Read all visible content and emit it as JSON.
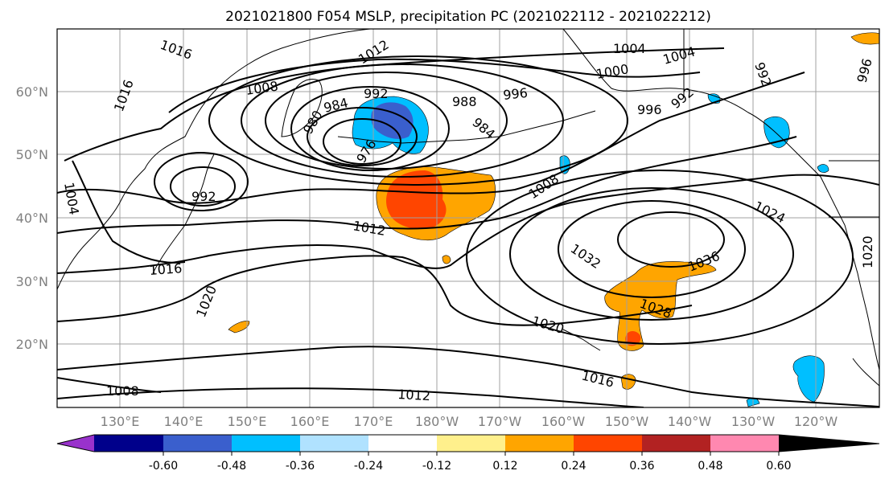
{
  "title": "2021021800 F054 MSLP, precipitation PC (2021022112 - 2021022212)",
  "map": {
    "lat_ticks": [
      "60°N",
      "50°N",
      "40°N",
      "30°N",
      "20°N"
    ],
    "lon_ticks": [
      "130°E",
      "140°E",
      "150°E",
      "160°E",
      "170°E",
      "180°W",
      "170°W",
      "160°W",
      "150°W",
      "140°W",
      "130°W",
      "120°W"
    ],
    "contour_labels": [
      "1016",
      "1012",
      "1004",
      "1004",
      "1000",
      "1008",
      "992",
      "984",
      "988",
      "996",
      "996",
      "992",
      "980",
      "976",
      "984",
      "996",
      "1004",
      "1008",
      "1012",
      "1016",
      "1020",
      "1024",
      "1032",
      "1036",
      "1028",
      "1020",
      "1016",
      "1008",
      "1012",
      "1020",
      "992",
      "1016",
      "992"
    ],
    "colors": {
      "coast": "#000000",
      "grid": "#a0a0a0",
      "isobar": "#000000"
    }
  },
  "colorbar": {
    "colors": [
      "#9932cc",
      "#00008b",
      "#3a5fcd",
      "#00bfff",
      "#b0e2ff",
      "#ffffff",
      "#fff08c",
      "#ffa500",
      "#ff4500",
      "#b22222",
      "#ff88b0"
    ],
    "tick_labels": [
      "-0.60",
      "-0.48",
      "-0.36",
      "-0.24",
      "-0.12",
      "0.12",
      "0.24",
      "0.36",
      "0.48",
      "0.60"
    ]
  },
  "precip_colors": {
    "light_pos": "#ffc000",
    "mid_pos": "#ffa500",
    "high_pos": "#ff4500",
    "light_neg": "#87cefa",
    "mid_neg": "#00bfff",
    "high_neg": "#3a5fcd"
  }
}
